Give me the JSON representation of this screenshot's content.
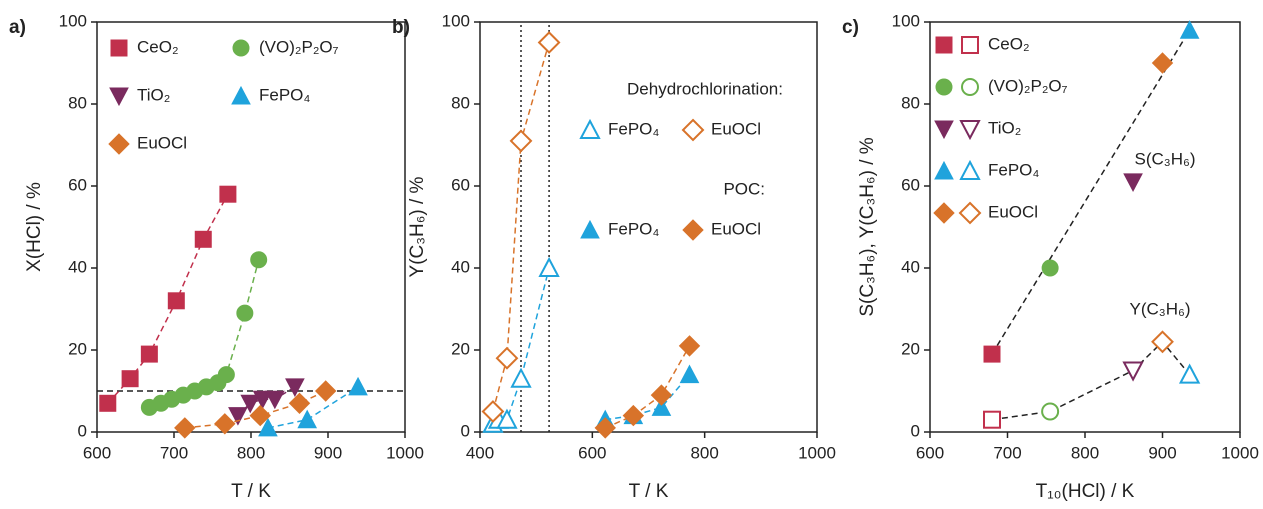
{
  "chart_data": [
    {
      "type": "scatter",
      "panel_label": "a)",
      "xlabel": "T / K",
      "ylabel": "X(HCl) / %",
      "xlim": [
        600,
        1000
      ],
      "ylim": [
        0,
        100
      ],
      "xticks": [
        600,
        700,
        800,
        900,
        1000
      ],
      "yticks": [
        0,
        20,
        40,
        60,
        80,
        100
      ],
      "hline": 10,
      "series": [
        {
          "name": "CeO₂",
          "color": "#c1304c",
          "marker": "square",
          "filled": true,
          "x": [
            614,
            643,
            668,
            703,
            738,
            770
          ],
          "values": [
            7,
            13,
            19,
            32,
            47,
            58
          ]
        },
        {
          "name": "(VO)₂P₂O₇",
          "color": "#6ab04c",
          "marker": "circle",
          "filled": true,
          "x": [
            668,
            683,
            697,
            712,
            727,
            742,
            757,
            768,
            792,
            810
          ],
          "values": [
            6,
            7,
            8,
            9,
            10,
            11,
            12,
            14,
            29,
            42
          ]
        },
        {
          "name": "TiO₂",
          "color": "#7a2a5e",
          "marker": "triangle-down",
          "filled": true,
          "x": [
            783,
            799,
            815,
            831,
            857
          ],
          "values": [
            4,
            7,
            8,
            8,
            11
          ]
        },
        {
          "name": "FePO₄",
          "color": "#1fa3dc",
          "marker": "triangle-up",
          "filled": true,
          "x": [
            822,
            873,
            939
          ],
          "values": [
            1,
            3,
            11
          ]
        },
        {
          "name": "EuOCl",
          "color": "#d8732a",
          "marker": "diamond",
          "filled": true,
          "x": [
            714,
            766,
            812,
            863,
            897
          ],
          "values": [
            1,
            2,
            4,
            7,
            10
          ]
        }
      ]
    },
    {
      "type": "scatter",
      "panel_label": "b)",
      "xlabel": "T / K",
      "ylabel": "Y(C₃H₆) / %",
      "xlim": [
        400,
        1000
      ],
      "ylim": [
        0,
        100
      ],
      "xticks": [
        400,
        600,
        800,
        1000
      ],
      "yticks": [
        0,
        20,
        40,
        60,
        80,
        100
      ],
      "vlines": [
        473,
        523
      ],
      "legend_titles": [
        "Dehydrochlorination:",
        "POC:"
      ],
      "series": [
        {
          "name": "FePO₄",
          "color": "#1fa3dc",
          "marker": "triangle-up",
          "filled": false,
          "x": [
            423,
            433,
            448,
            473,
            523
          ],
          "values": [
            2,
            3,
            3,
            13,
            40
          ]
        },
        {
          "name": "EuOCl",
          "color": "#d8732a",
          "marker": "diamond",
          "filled": false,
          "x": [
            423,
            448,
            473,
            523
          ],
          "values": [
            5,
            18,
            71,
            95
          ]
        },
        {
          "name": "FePO₄",
          "color": "#1fa3dc",
          "marker": "triangle-up",
          "filled": true,
          "x": [
            623,
            673,
            723,
            773
          ],
          "values": [
            3,
            4,
            6,
            14
          ]
        },
        {
          "name": "EuOCl",
          "color": "#d8732a",
          "marker": "diamond",
          "filled": true,
          "x": [
            623,
            673,
            723,
            773
          ],
          "values": [
            1,
            4,
            9,
            21
          ]
        }
      ]
    },
    {
      "type": "pairs",
      "panel_label": "c)",
      "xlabel": "T₁₀(HCl) / K",
      "ylabel": "S(C₃H₆),  Y(C₃H₆) / %",
      "xlim": [
        600,
        1000
      ],
      "ylim": [
        0,
        100
      ],
      "xticks": [
        600,
        700,
        800,
        900,
        1000
      ],
      "yticks": [
        0,
        20,
        40,
        60,
        80,
        100
      ],
      "annotations": [
        "S(C₃H₆)",
        "Y(C₃H₆)"
      ],
      "series": [
        {
          "name": "CeO₂",
          "color": "#c1304c",
          "marker": "square",
          "x": 680,
          "S": 19,
          "Y": 3
        },
        {
          "name": "(VO)₂P₂O₇",
          "color": "#6ab04c",
          "marker": "circle",
          "x": 755,
          "S": 40,
          "Y": 5
        },
        {
          "name": "TiO₂",
          "color": "#7a2a5e",
          "marker": "triangle-down",
          "x": 862,
          "S": 61,
          "Y": 15
        },
        {
          "name": "FePO₄",
          "color": "#1fa3dc",
          "marker": "triangle-up",
          "x": 935,
          "S": 98,
          "Y": 14
        },
        {
          "name": "EuOCl",
          "color": "#d8732a",
          "marker": "diamond",
          "x": 900,
          "S": 90,
          "Y": 22
        }
      ]
    }
  ]
}
